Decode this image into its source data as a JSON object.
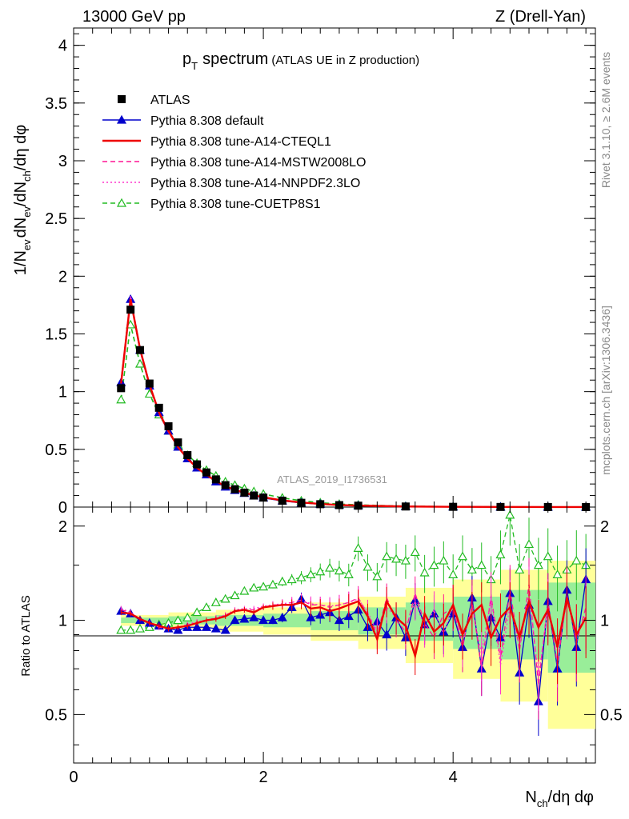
{
  "header": {
    "energy_label": "13000 GeV pp",
    "process_label": "Z (Drell-Yan)"
  },
  "side_labels": {
    "rivet": "Rivet 3.1.10, ≥ 2.6M events",
    "source": "mcplots.cern.ch [arXiv:1306.3436]"
  },
  "watermark": "ATLAS_2019_I1736531",
  "chart_data": [
    {
      "type": "line",
      "panel": "main",
      "title_main": "p",
      "title_sub": "T",
      "title_text": "spectrum",
      "title_note": "(ATLAS UE in Z production)",
      "ylabel": "1/N_ev dN_ev/dN_ch/dη dφ",
      "xlabel": "N_ch/dη dφ",
      "xlim": [
        0,
        5.5
      ],
      "ylim": [
        0,
        4.15
      ],
      "y_ticks": [
        "0",
        "0.5",
        "1",
        "1.5",
        "2",
        "2.5",
        "3",
        "3.5",
        "4"
      ],
      "grid": false,
      "legend_position": "top-left",
      "x": [
        0.5,
        0.6,
        0.7,
        0.8,
        0.9,
        1.0,
        1.1,
        1.2,
        1.3,
        1.4,
        1.5,
        1.6,
        1.7,
        1.8,
        1.9,
        2.0,
        2.2,
        2.4,
        2.6,
        2.8,
        3.0,
        3.5,
        4.0,
        4.5,
        5.0,
        5.4
      ],
      "series": [
        {
          "name": "ATLAS",
          "color": "#000000",
          "style": "data",
          "values": [
            1.03,
            1.71,
            1.36,
            1.07,
            0.86,
            0.7,
            0.56,
            0.45,
            0.37,
            0.3,
            0.24,
            0.19,
            0.155,
            0.125,
            0.1,
            0.082,
            0.055,
            0.037,
            0.025,
            0.017,
            0.012,
            0.005,
            0.0022,
            0.0011,
            0.0006,
            0.0004
          ]
        },
        {
          "name": "Pythia 8.308 default",
          "color": "#0000cc",
          "style": "solid-triangle",
          "values": [
            1.08,
            1.8,
            1.36,
            1.05,
            0.82,
            0.66,
            0.52,
            0.42,
            0.34,
            0.28,
            0.22,
            0.175,
            0.145,
            0.12,
            0.098,
            0.08,
            0.054,
            0.037,
            0.026,
            0.017,
            0.013,
            0.005,
            0.0022,
            0.0011,
            0.0006,
            0.0004
          ]
        },
        {
          "name": "Pythia 8.308 tune-A14-CTEQL1",
          "color": "#ee0000",
          "style": "solid",
          "values": [
            1.07,
            1.8,
            1.37,
            1.06,
            0.82,
            0.66,
            0.52,
            0.42,
            0.34,
            0.28,
            0.225,
            0.18,
            0.15,
            0.125,
            0.103,
            0.085,
            0.058,
            0.04,
            0.027,
            0.018,
            0.013,
            0.0052,
            0.0023,
            0.0011,
            0.0006,
            0.0004
          ]
        },
        {
          "name": "Pythia 8.308 tune-A14-MSTW2008LO",
          "color": "#ff1493",
          "style": "dashed",
          "values": [
            1.08,
            1.82,
            1.36,
            1.05,
            0.81,
            0.65,
            0.52,
            0.42,
            0.34,
            0.28,
            0.225,
            0.18,
            0.15,
            0.125,
            0.103,
            0.085,
            0.059,
            0.041,
            0.028,
            0.019,
            0.013,
            0.0052,
            0.0023,
            0.0011,
            0.0005,
            0.0003
          ]
        },
        {
          "name": "Pythia 8.308 tune-A14-NNPDF2.3LO",
          "color": "#ff33cc",
          "style": "dotted",
          "values": [
            1.09,
            1.83,
            1.37,
            1.05,
            0.81,
            0.65,
            0.52,
            0.42,
            0.34,
            0.28,
            0.225,
            0.18,
            0.15,
            0.125,
            0.103,
            0.085,
            0.059,
            0.041,
            0.028,
            0.019,
            0.013,
            0.0052,
            0.0023,
            0.0011,
            0.0005,
            0.0003
          ]
        },
        {
          "name": "Pythia 8.308 tune-CUETP8S1",
          "color": "#22bb22",
          "style": "dashed-open-triangle",
          "values": [
            0.93,
            1.58,
            1.24,
            0.98,
            0.8,
            0.66,
            0.54,
            0.45,
            0.38,
            0.32,
            0.27,
            0.22,
            0.19,
            0.16,
            0.135,
            0.113,
            0.08,
            0.055,
            0.038,
            0.026,
            0.019,
            0.008,
            0.0035,
            0.0017,
            0.0009,
            0.0006
          ]
        }
      ]
    },
    {
      "type": "line",
      "panel": "ratio",
      "ylabel": "Ratio to ATLAS",
      "xlim": [
        0,
        5.5
      ],
      "ylim": [
        0.35,
        2.3
      ],
      "x_ticks": [
        "0",
        "2",
        "4"
      ],
      "y_ticks": [
        "0.5",
        "1",
        "2"
      ],
      "reference": 1,
      "band_edges": [
        0.5,
        1.0,
        1.5,
        2.0,
        2.5,
        3.0,
        3.5,
        4.0,
        4.5,
        5.0,
        5.5
      ],
      "band_stat": [
        0.02,
        0.03,
        0.04,
        0.05,
        0.07,
        0.1,
        0.14,
        0.19,
        0.25,
        0.32
      ],
      "band_total": [
        0.04,
        0.06,
        0.08,
        0.1,
        0.14,
        0.19,
        0.27,
        0.35,
        0.45,
        0.55
      ],
      "x": [
        0.5,
        0.6,
        0.7,
        0.8,
        0.9,
        1.0,
        1.1,
        1.2,
        1.3,
        1.4,
        1.5,
        1.6,
        1.7,
        1.8,
        1.9,
        2.0,
        2.1,
        2.2,
        2.3,
        2.4,
        2.5,
        2.6,
        2.7,
        2.8,
        2.9,
        3.0,
        3.1,
        3.2,
        3.3,
        3.4,
        3.5,
        3.6,
        3.7,
        3.8,
        3.9,
        4.0,
        4.1,
        4.2,
        4.3,
        4.4,
        4.5,
        4.6,
        4.7,
        4.8,
        4.9,
        5.0,
        5.1,
        5.2,
        5.3,
        5.4
      ],
      "series": [
        {
          "name": "Pythia 8.308 default",
          "color": "#0000cc",
          "values": [
            1.07,
            1.05,
            1.0,
            0.98,
            0.96,
            0.94,
            0.93,
            0.95,
            0.95,
            0.95,
            0.94,
            0.93,
            1.0,
            1.01,
            1.02,
            1.0,
            1.0,
            1.02,
            1.1,
            1.17,
            1.02,
            1.04,
            1.06,
            1.0,
            1.03,
            1.08,
            0.95,
            0.99,
            0.9,
            1.02,
            0.88,
            1.16,
            0.97,
            1.05,
            0.92,
            1.05,
            0.82,
            1.18,
            0.7,
            1.02,
            0.88,
            1.22,
            0.68,
            1.12,
            0.55,
            1.15,
            0.7,
            1.25,
            0.82,
            1.35
          ]
        },
        {
          "name": "Pythia 8.308 tune-A14-CTEQL1",
          "color": "#ee0000",
          "values": [
            1.06,
            1.05,
            1.01,
            0.98,
            0.96,
            0.94,
            0.95,
            0.96,
            0.98,
            1.0,
            1.01,
            1.03,
            1.07,
            1.08,
            1.06,
            1.1,
            1.11,
            1.12,
            1.12,
            1.14,
            1.09,
            1.1,
            1.07,
            1.09,
            1.12,
            1.15,
            1.03,
            0.87,
            1.15,
            1.02,
            0.96,
            0.77,
            1.05,
            0.92,
            0.98,
            1.12,
            0.9,
            1.05,
            1.12,
            0.88,
            1.02,
            1.1,
            0.88,
            1.15,
            0.95,
            1.08,
            0.82,
            1.18,
            0.9,
            1.02
          ]
        },
        {
          "name": "Pythia 8.308 tune-A14-MSTW2008LO",
          "color": "#ff1493",
          "values": [
            1.08,
            1.06,
            1.01,
            0.98,
            0.95,
            0.94,
            0.95,
            0.96,
            0.98,
            1.0,
            1.01,
            1.04,
            1.07,
            1.08,
            1.08,
            1.1,
            1.12,
            1.12,
            1.14,
            1.16,
            1.12,
            1.12,
            1.1,
            1.12,
            1.14,
            1.18,
            1.05,
            0.9,
            1.18,
            1.0,
            0.92,
            1.22,
            0.98,
            0.88,
            1.05,
            1.1,
            0.82,
            1.15,
            0.7,
            1.2,
            0.75,
            1.25,
            0.8,
            1.3,
            0.62,
            1.15,
            0.72,
            1.2,
            0.85,
            1.1
          ]
        },
        {
          "name": "Pythia 8.308 tune-A14-NNPDF2.3LO",
          "color": "#ff33cc",
          "values": [
            1.09,
            1.06,
            1.01,
            0.98,
            0.95,
            0.94,
            0.95,
            0.97,
            0.99,
            1.0,
            1.02,
            1.04,
            1.08,
            1.09,
            1.09,
            1.11,
            1.12,
            1.13,
            1.14,
            1.16,
            1.13,
            1.12,
            1.11,
            1.12,
            1.14,
            1.17,
            1.06,
            0.92,
            1.1,
            1.02,
            0.95,
            1.15,
            0.95,
            1.08,
            0.9,
            1.12,
            0.85,
            1.1,
            0.78,
            1.18,
            0.72,
            1.12,
            0.82,
            1.22,
            0.66,
            1.1,
            0.8,
            1.15,
            0.9,
            1.05
          ]
        },
        {
          "name": "Pythia 8.308 tune-CUETP8S1",
          "color": "#22bb22",
          "values": [
            0.93,
            0.93,
            0.94,
            0.95,
            0.97,
            0.98,
            1.0,
            1.02,
            1.06,
            1.1,
            1.14,
            1.17,
            1.2,
            1.24,
            1.27,
            1.28,
            1.3,
            1.33,
            1.35,
            1.37,
            1.4,
            1.43,
            1.47,
            1.44,
            1.4,
            1.7,
            1.48,
            1.38,
            1.6,
            1.57,
            1.55,
            1.65,
            1.42,
            1.5,
            1.55,
            1.4,
            1.6,
            1.45,
            1.5,
            1.35,
            1.62,
            2.17,
            1.45,
            1.75,
            1.5,
            1.6,
            1.4,
            1.45,
            1.55,
            1.5
          ]
        }
      ]
    }
  ]
}
